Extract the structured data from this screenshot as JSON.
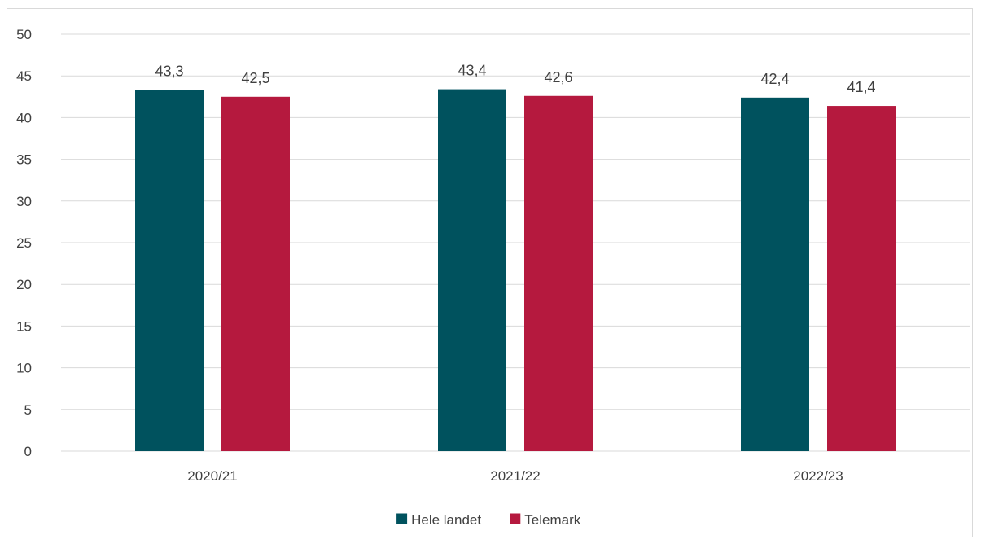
{
  "chart_data": {
    "type": "bar",
    "categories": [
      "2020/21",
      "2021/22",
      "2022/23"
    ],
    "series": [
      {
        "name": "Hele landet",
        "color": "#00525e",
        "values": [
          43.3,
          43.4,
          42.4
        ],
        "labels": [
          "43,3",
          "43,4",
          "42,4"
        ]
      },
      {
        "name": "Telemark",
        "color": "#b5193e",
        "values": [
          42.5,
          42.6,
          41.4
        ],
        "labels": [
          "42,5",
          "42,6",
          "41,4"
        ]
      }
    ],
    "ylim": [
      0,
      50
    ],
    "yticks": [
      0,
      5,
      10,
      15,
      20,
      25,
      30,
      35,
      40,
      45,
      50
    ],
    "grid": true,
    "legend_position": "bottom",
    "title": "",
    "xlabel": "",
    "ylabel": ""
  }
}
